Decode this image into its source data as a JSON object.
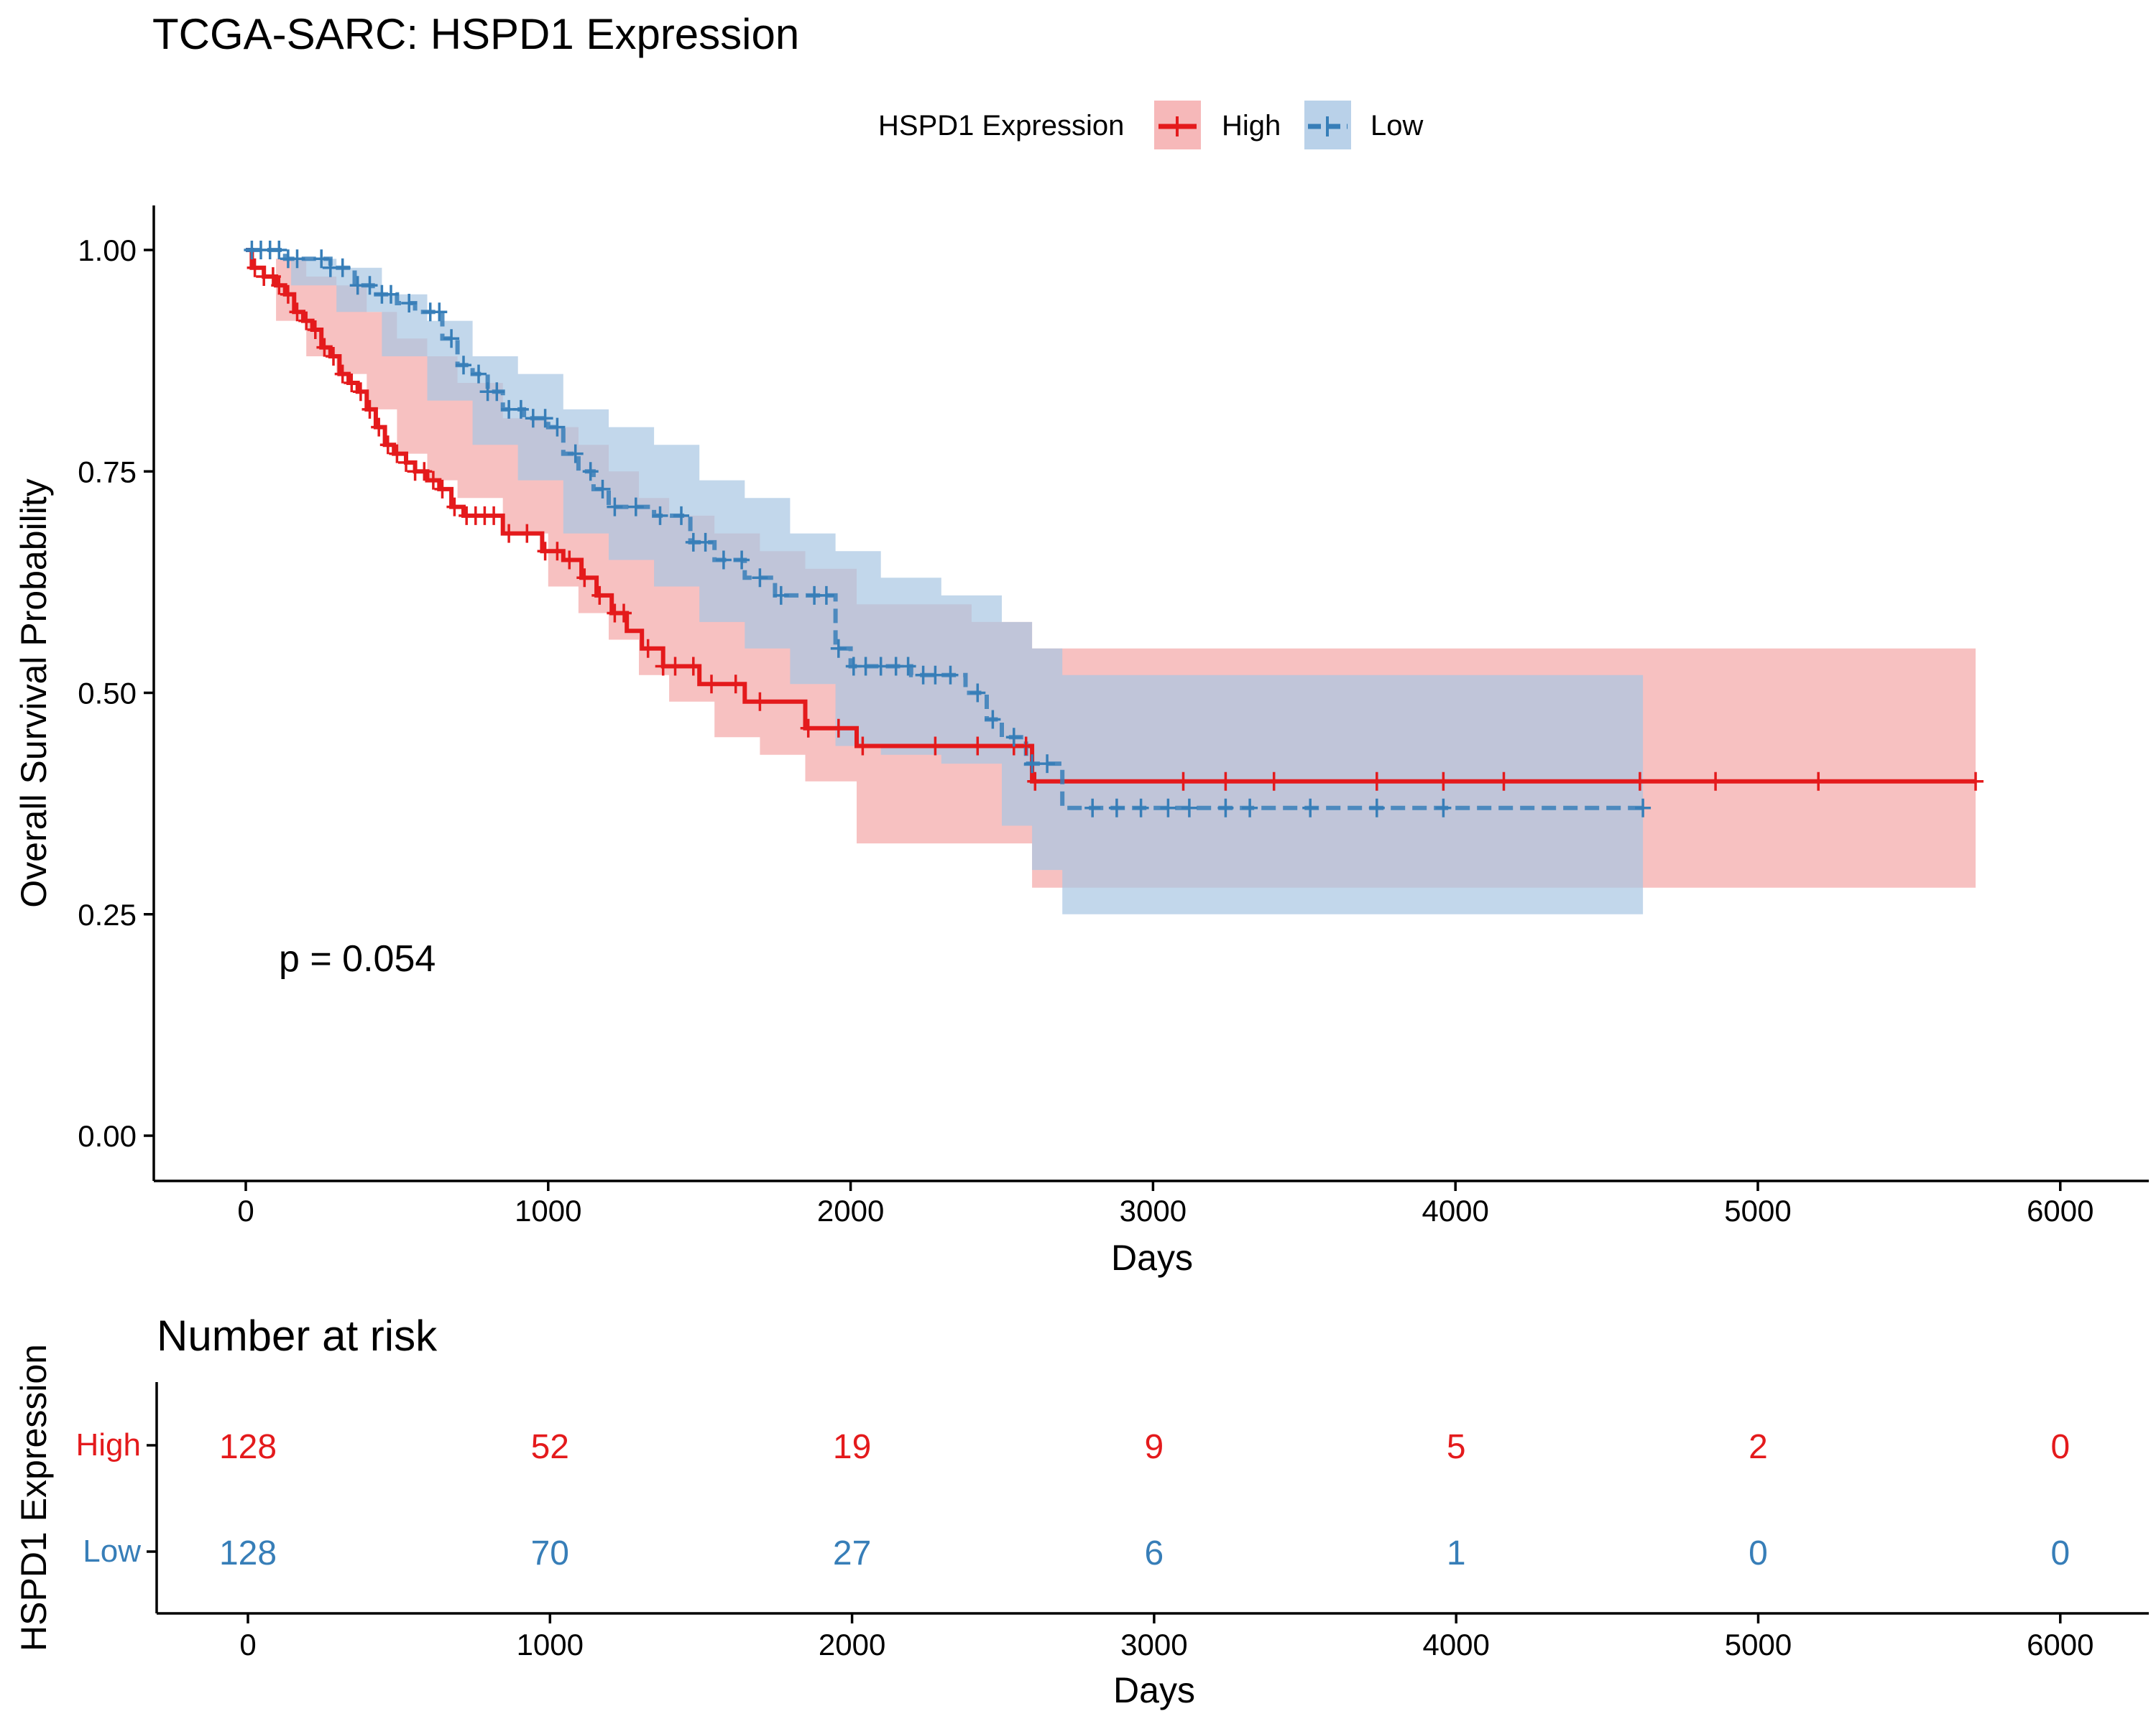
{
  "title": "TCGA-SARC: HSPD1 Expression",
  "legend": {
    "title": "HSPD1 Expression",
    "items": [
      "High",
      "Low"
    ]
  },
  "p_value_label": "p = 0.054",
  "colors": {
    "High": "#E41A1C",
    "Low": "#377EB8",
    "High_band": "#F4A6A7",
    "Low_band": "#A8C6E3"
  },
  "risk_table": {
    "title": "Number at risk",
    "ylabel": "HSPD1 Expression",
    "xlabel": "Days",
    "groups": [
      "High",
      "Low"
    ],
    "times": [
      0,
      1000,
      2000,
      3000,
      4000,
      5000,
      6000
    ],
    "counts": {
      "High": [
        128,
        52,
        19,
        9,
        5,
        2,
        0
      ],
      "Low": [
        128,
        70,
        27,
        6,
        1,
        0,
        0
      ]
    }
  },
  "chart_data": {
    "type": "line",
    "subtype": "kaplan-meier step",
    "title": "TCGA-SARC: HSPD1 Expression",
    "xlabel": "Days",
    "ylabel": "Overall Survival Probability",
    "xlim": [
      -300,
      6300
    ],
    "ylim": [
      -0.05,
      1.05
    ],
    "xticks": [
      0,
      1000,
      2000,
      3000,
      4000,
      5000,
      6000
    ],
    "yticks": [
      0.0,
      0.25,
      0.5,
      0.75,
      1.0
    ],
    "ytick_labels": [
      "0.00",
      "0.25",
      "0.50",
      "0.75",
      "1.00"
    ],
    "legend_position": "top",
    "grid": false,
    "series": [
      {
        "name": "High",
        "style": "solid",
        "steps": [
          [
            0,
            1.0
          ],
          [
            20,
            0.98
          ],
          [
            60,
            0.97
          ],
          [
            100,
            0.96
          ],
          [
            130,
            0.95
          ],
          [
            160,
            0.93
          ],
          [
            190,
            0.92
          ],
          [
            220,
            0.91
          ],
          [
            250,
            0.89
          ],
          [
            280,
            0.88
          ],
          [
            310,
            0.86
          ],
          [
            340,
            0.85
          ],
          [
            370,
            0.84
          ],
          [
            400,
            0.82
          ],
          [
            430,
            0.8
          ],
          [
            460,
            0.78
          ],
          [
            490,
            0.77
          ],
          [
            530,
            0.76
          ],
          [
            560,
            0.75
          ],
          [
            600,
            0.74
          ],
          [
            640,
            0.73
          ],
          [
            680,
            0.71
          ],
          [
            720,
            0.7
          ],
          [
            850,
            0.68
          ],
          [
            980,
            0.66
          ],
          [
            1050,
            0.65
          ],
          [
            1110,
            0.63
          ],
          [
            1160,
            0.61
          ],
          [
            1210,
            0.59
          ],
          [
            1260,
            0.57
          ],
          [
            1310,
            0.55
          ],
          [
            1380,
            0.53
          ],
          [
            1500,
            0.51
          ],
          [
            1650,
            0.49
          ],
          [
            1850,
            0.46
          ],
          [
            2020,
            0.44
          ],
          [
            2600,
            0.4
          ]
        ],
        "end_x": 5720,
        "band": [
          [
            0,
            1.0,
            1.0
          ],
          [
            100,
            0.99,
            0.92
          ],
          [
            200,
            0.97,
            0.88
          ],
          [
            300,
            0.96,
            0.86
          ],
          [
            400,
            0.93,
            0.82
          ],
          [
            500,
            0.9,
            0.77
          ],
          [
            600,
            0.88,
            0.74
          ],
          [
            700,
            0.85,
            0.72
          ],
          [
            850,
            0.81,
            0.68
          ],
          [
            1000,
            0.8,
            0.62
          ],
          [
            1100,
            0.78,
            0.59
          ],
          [
            1200,
            0.75,
            0.56
          ],
          [
            1300,
            0.72,
            0.52
          ],
          [
            1400,
            0.7,
            0.49
          ],
          [
            1550,
            0.68,
            0.45
          ],
          [
            1700,
            0.66,
            0.43
          ],
          [
            1850,
            0.64,
            0.4
          ],
          [
            2020,
            0.6,
            0.33
          ],
          [
            2400,
            0.58,
            0.33
          ],
          [
            2600,
            0.55,
            0.28
          ],
          [
            5720,
            0.55,
            0.28
          ]
        ],
        "censor_x": [
          30,
          60,
          90,
          110,
          140,
          170,
          200,
          230,
          260,
          290,
          320,
          350,
          380,
          410,
          440,
          470,
          500,
          530,
          560,
          590,
          620,
          650,
          690,
          730,
          760,
          790,
          820,
          870,
          930,
          990,
          1030,
          1070,
          1120,
          1170,
          1220,
          1250,
          1330,
          1380,
          1420,
          1480,
          1540,
          1620,
          1700,
          1860,
          1960,
          2040,
          2280,
          2420,
          2540,
          2580,
          2610,
          3100,
          3240,
          3400,
          3740,
          3960,
          4160,
          4610,
          4860,
          5200,
          5720
        ]
      },
      {
        "name": "Low",
        "style": "dashed",
        "steps": [
          [
            0,
            1.0
          ],
          [
            130,
            0.99
          ],
          [
            280,
            0.98
          ],
          [
            360,
            0.96
          ],
          [
            420,
            0.95
          ],
          [
            500,
            0.94
          ],
          [
            560,
            0.93
          ],
          [
            650,
            0.9
          ],
          [
            700,
            0.87
          ],
          [
            750,
            0.86
          ],
          [
            800,
            0.84
          ],
          [
            850,
            0.82
          ],
          [
            920,
            0.81
          ],
          [
            1000,
            0.8
          ],
          [
            1050,
            0.77
          ],
          [
            1100,
            0.75
          ],
          [
            1150,
            0.73
          ],
          [
            1200,
            0.71
          ],
          [
            1350,
            0.7
          ],
          [
            1470,
            0.67
          ],
          [
            1550,
            0.65
          ],
          [
            1650,
            0.63
          ],
          [
            1750,
            0.61
          ],
          [
            1950,
            0.55
          ],
          [
            2000,
            0.53
          ],
          [
            2200,
            0.52
          ],
          [
            2380,
            0.5
          ],
          [
            2450,
            0.47
          ],
          [
            2500,
            0.45
          ],
          [
            2580,
            0.42
          ],
          [
            2700,
            0.37
          ]
        ],
        "end_x": 4620,
        "band": [
          [
            0,
            1.0,
            1.0
          ],
          [
            150,
            0.99,
            0.96
          ],
          [
            300,
            0.98,
            0.93
          ],
          [
            450,
            0.95,
            0.88
          ],
          [
            600,
            0.92,
            0.83
          ],
          [
            750,
            0.88,
            0.78
          ],
          [
            900,
            0.86,
            0.74
          ],
          [
            1050,
            0.82,
            0.68
          ],
          [
            1200,
            0.8,
            0.65
          ],
          [
            1350,
            0.78,
            0.62
          ],
          [
            1500,
            0.74,
            0.58
          ],
          [
            1650,
            0.72,
            0.55
          ],
          [
            1800,
            0.68,
            0.51
          ],
          [
            1950,
            0.66,
            0.44
          ],
          [
            2100,
            0.63,
            0.43
          ],
          [
            2300,
            0.61,
            0.42
          ],
          [
            2500,
            0.58,
            0.35
          ],
          [
            2600,
            0.55,
            0.3
          ],
          [
            2700,
            0.52,
            0.25
          ],
          [
            4620,
            0.52,
            0.25
          ]
        ],
        "censor_x": [
          20,
          50,
          80,
          110,
          140,
          170,
          250,
          280,
          320,
          370,
          410,
          450,
          480,
          540,
          610,
          640,
          680,
          720,
          770,
          800,
          830,
          870,
          910,
          950,
          990,
          1030,
          1090,
          1140,
          1180,
          1220,
          1290,
          1370,
          1440,
          1480,
          1520,
          1580,
          1640,
          1700,
          1770,
          1880,
          1920,
          1960,
          2010,
          2050,
          2100,
          2150,
          2190,
          2240,
          2280,
          2330,
          2420,
          2470,
          2540,
          2600,
          2650,
          2800,
          2880,
          2960,
          3050,
          3120,
          3240,
          3320,
          3520,
          3740,
          3960,
          4620
        ]
      }
    ]
  }
}
